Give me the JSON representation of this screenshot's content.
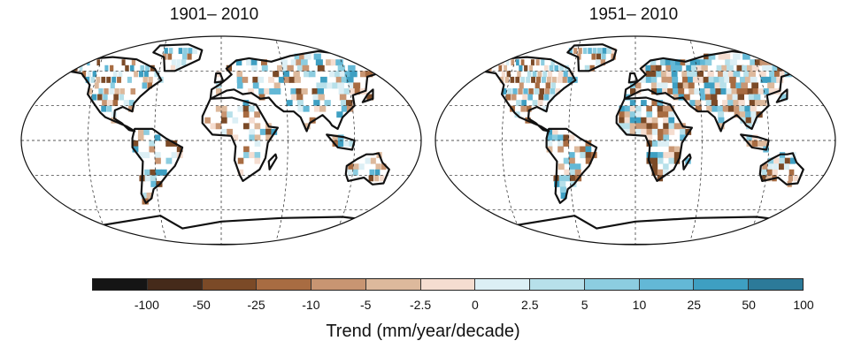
{
  "maps": [
    {
      "title": "1901– 2010"
    },
    {
      "title": "1951– 2010"
    }
  ],
  "legend": {
    "title": "Trend (mm/year/decade)",
    "colors": [
      "#151515",
      "#452a1a",
      "#7b4a27",
      "#a86c42",
      "#c89572",
      "#ddb99c",
      "#f5ddd0",
      "#dceff5",
      "#b7e0ea",
      "#8ccde0",
      "#63b8d6",
      "#3e9fc2",
      "#2c7a99"
    ],
    "tick_labels": [
      "-100",
      "-50",
      "-25",
      "-10",
      "-5",
      "-2.5",
      "0",
      "2.5",
      "5",
      "10",
      "25",
      "50",
      "100"
    ]
  }
}
